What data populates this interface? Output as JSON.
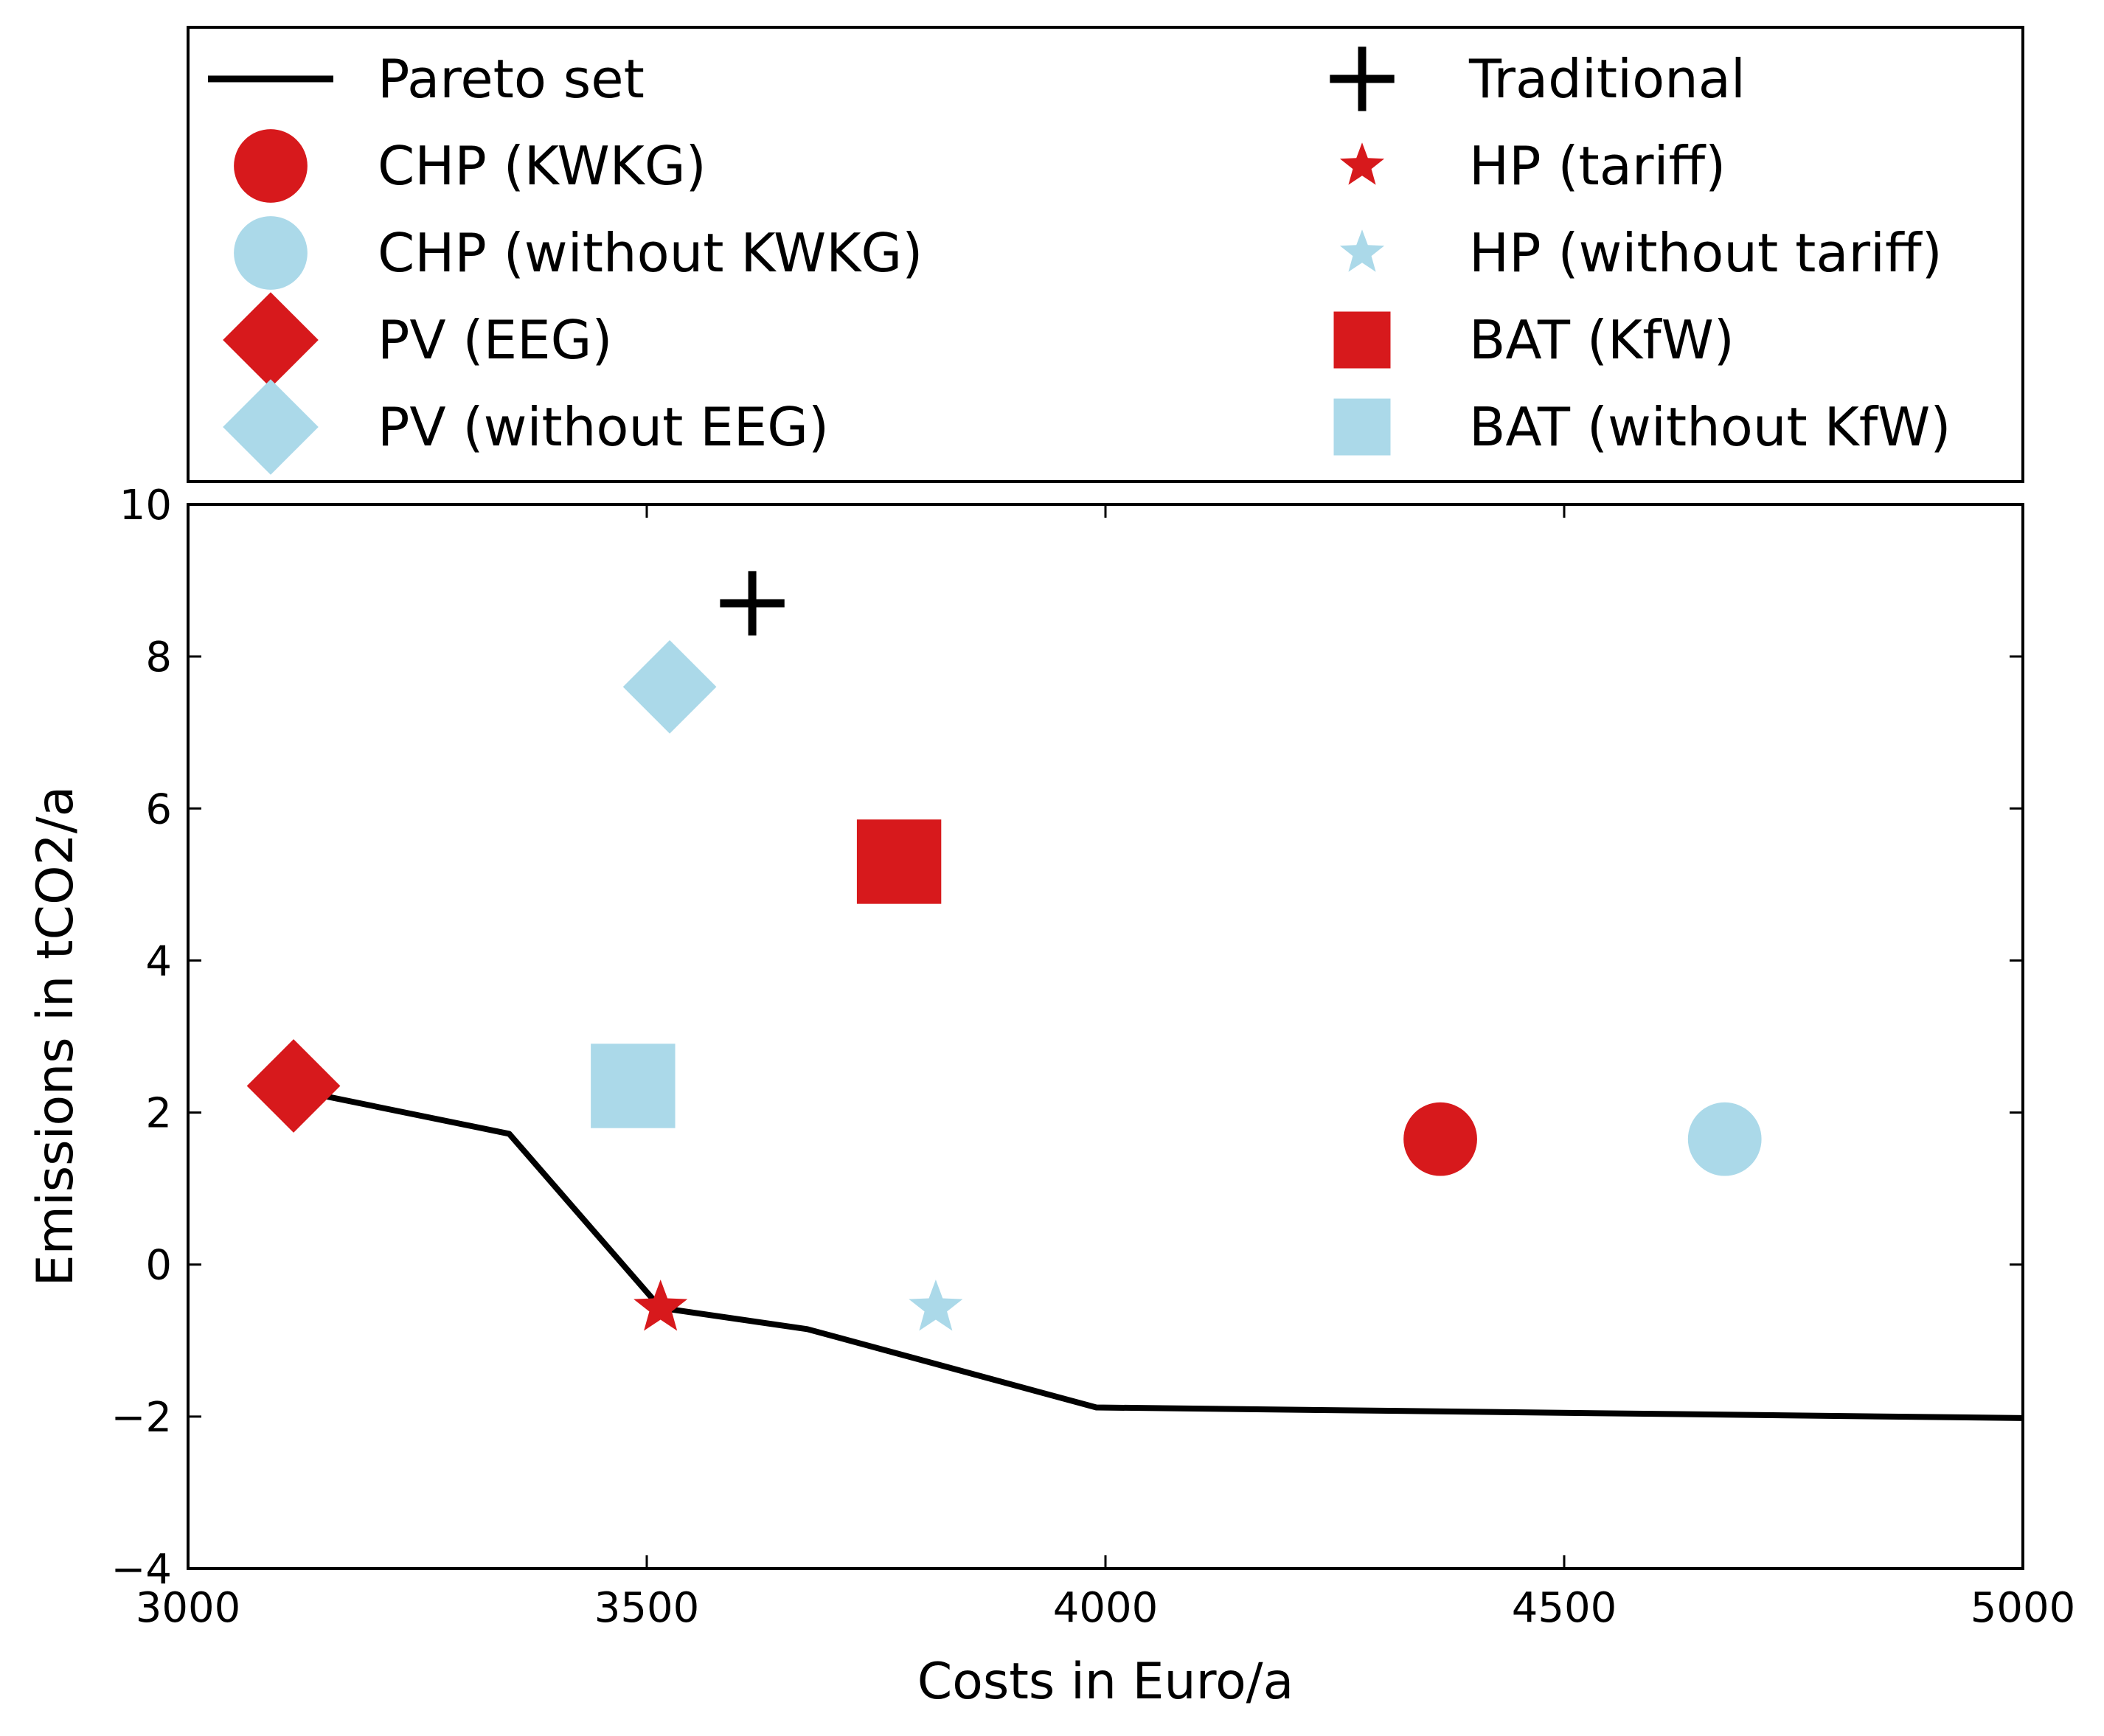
{
  "chart_data": {
    "type": "scatter",
    "xlabel": "Costs in Euro/a",
    "ylabel": "Emissions in tCO2/a",
    "xlim": [
      3000,
      5000
    ],
    "ylim": [
      -4,
      10
    ],
    "xticks": [
      3000,
      3500,
      4000,
      4500,
      5000
    ],
    "yticks": [
      -4,
      -2,
      0,
      2,
      4,
      6,
      8,
      10
    ],
    "xtick_labels": [
      "3000",
      "3500",
      "4000",
      "4500",
      "5000"
    ],
    "ytick_labels": [
      "−4",
      "−2",
      "0",
      "2",
      "4",
      "6",
      "8",
      "10"
    ],
    "grid": false,
    "legend_placement": "above plot, two columns",
    "line_series": {
      "name": "Pareto set",
      "color": "#000000",
      "x": [
        3115,
        3350,
        3515,
        3675,
        3990,
        5000
      ],
      "y": [
        2.3,
        1.72,
        -0.57,
        -0.85,
        -1.88,
        -2.02
      ]
    },
    "points": [
      {
        "name": "Traditional",
        "marker": "plus",
        "color": "#000000",
        "x": 3615,
        "y": 8.7
      },
      {
        "name": "CHP (KWKG)",
        "marker": "circle",
        "color": "#d7191c",
        "x": 4365,
        "y": 1.65
      },
      {
        "name": "CHP (without KWKG)",
        "marker": "circle",
        "color": "#abd9e9",
        "x": 4675,
        "y": 1.65
      },
      {
        "name": "PV (EEG)",
        "marker": "diamond",
        "color": "#d7191c",
        "x": 3115,
        "y": 2.35
      },
      {
        "name": "PV (without EEG)",
        "marker": "diamond",
        "color": "#abd9e9",
        "x": 3525,
        "y": 7.6
      },
      {
        "name": "HP (tariff)",
        "marker": "star",
        "color": "#d7191c",
        "x": 3515,
        "y": -0.57
      },
      {
        "name": "HP (without tariff)",
        "marker": "star",
        "color": "#abd9e9",
        "x": 3815,
        "y": -0.57
      },
      {
        "name": "BAT (KfW)",
        "marker": "square",
        "color": "#d7191c",
        "x": 3775,
        "y": 5.3
      },
      {
        "name": "BAT (without KfW)",
        "marker": "square",
        "color": "#abd9e9",
        "x": 3485,
        "y": 2.35
      }
    ],
    "legend": [
      {
        "label": "Pareto set",
        "marker": "line",
        "color": "#000000"
      },
      {
        "label": "CHP (KWKG)",
        "marker": "circle",
        "color": "#d7191c"
      },
      {
        "label": "CHP (without KWKG)",
        "marker": "circle",
        "color": "#abd9e9"
      },
      {
        "label": "PV (EEG)",
        "marker": "diamond",
        "color": "#d7191c"
      },
      {
        "label": "PV (without EEG)",
        "marker": "diamond",
        "color": "#abd9e9"
      },
      {
        "label": "Traditional",
        "marker": "plus",
        "color": "#000000"
      },
      {
        "label": "HP (tariff)",
        "marker": "star",
        "color": "#d7191c"
      },
      {
        "label": "HP (without tariff)",
        "marker": "star",
        "color": "#abd9e9"
      },
      {
        "label": "BAT (KfW)",
        "marker": "square",
        "color": "#d7191c"
      },
      {
        "label": "BAT (without KfW)",
        "marker": "square",
        "color": "#abd9e9"
      }
    ]
  }
}
